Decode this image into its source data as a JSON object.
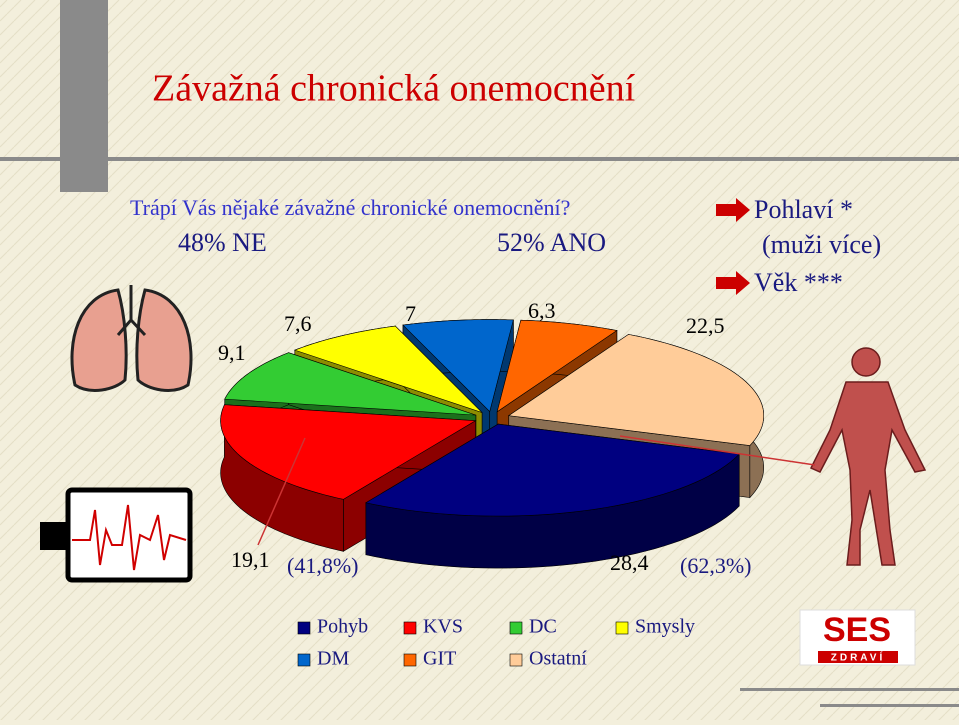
{
  "slide": {
    "title": "Závažná chronická onemocnění",
    "question": "Trápí Vás nějaké závažné chronické onemocnění?",
    "no": "48% NE",
    "yes": "52% ANO",
    "notes": [
      "Pohlaví *",
      "(muži více)",
      "Věk ***"
    ],
    "logo": {
      "text": "SES",
      "subtext": "ZDRAVÍ"
    }
  },
  "chart_data": {
    "type": "pie",
    "categories": [
      "Pohyb",
      "KVS",
      "DC",
      "Smysly",
      "DM",
      "GIT",
      "Ostatní"
    ],
    "values": [
      28.4,
      19.1,
      9.1,
      7.6,
      7,
      6.3,
      22.5
    ],
    "value_labels": [
      "28,4",
      "19,1",
      "9,1",
      "7,6",
      "7",
      "6,3",
      "22,5"
    ],
    "colors": [
      "#000080",
      "#ff0000",
      "#33cc33",
      "#ffff00",
      "#0066cc",
      "#ff6600",
      "#ffcc99"
    ],
    "annotations": [
      "(62,3%)",
      "(41,8%)"
    ],
    "legend": "bottom"
  }
}
